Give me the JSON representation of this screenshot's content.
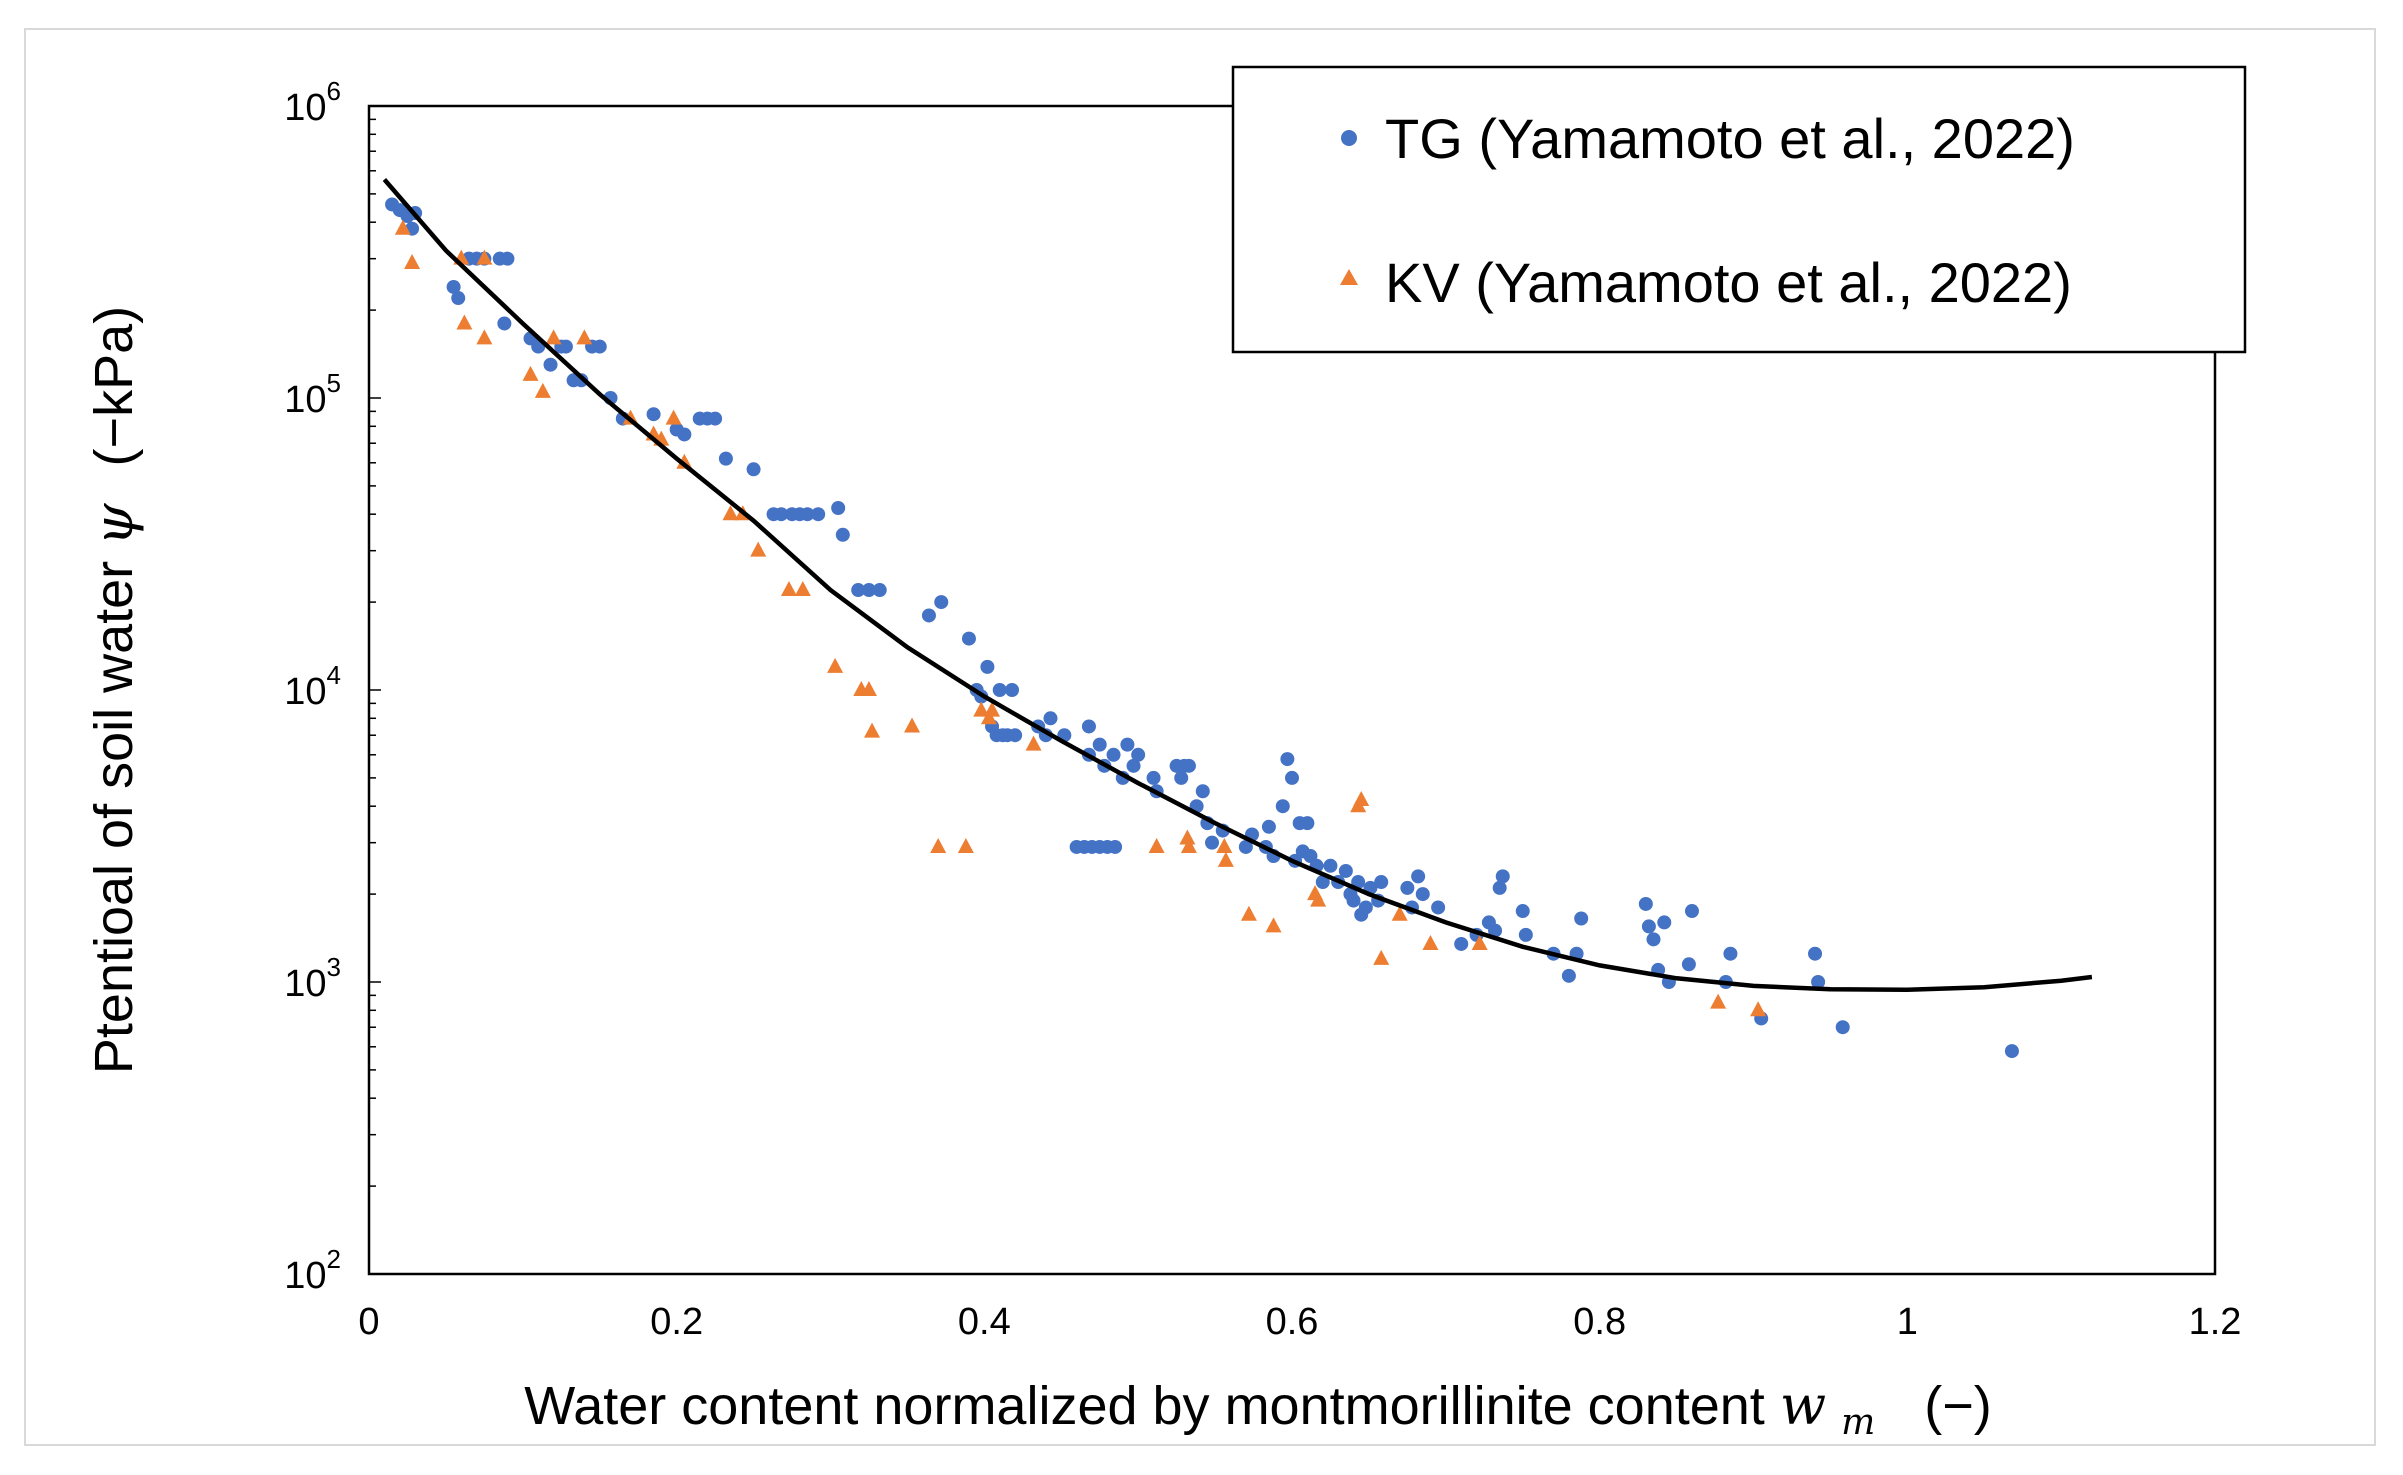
{
  "chart_data": {
    "type": "scatter",
    "xlabel": "Water content normalized by montmorillinite content",
    "xlabel_symbol": "w",
    "xlabel_subscript": "m",
    "xlabel_unit": "(−)",
    "ylabel": "Ptentioal of soil water",
    "ylabel_symbol": "ψ",
    "ylabel_unit": "(−kPa)",
    "xlim": [
      0,
      1.2
    ],
    "ylim": [
      100,
      1000000
    ],
    "yscale": "log",
    "xticks": [
      "0",
      "0.2",
      "0.4",
      "0.6",
      "0.8",
      "1",
      "1.2"
    ],
    "yticks": [
      {
        "base": "10",
        "exp": "2",
        "value": 100
      },
      {
        "base": "10",
        "exp": "3",
        "value": 1000
      },
      {
        "base": "10",
        "exp": "4",
        "value": 10000
      },
      {
        "base": "10",
        "exp": "5",
        "value": 100000
      },
      {
        "base": "10",
        "exp": "6",
        "value": 1000000
      }
    ],
    "grid": false,
    "legend_position": "top-right",
    "series": [
      {
        "name": "TG (Yamamoto et al., 2022)",
        "marker": "circle",
        "color": "#4472C4",
        "points": [
          [
            0.015,
            460000
          ],
          [
            0.02,
            440000
          ],
          [
            0.025,
            420000
          ],
          [
            0.028,
            380000
          ],
          [
            0.03,
            430000
          ],
          [
            0.055,
            240000
          ],
          [
            0.058,
            220000
          ],
          [
            0.065,
            300000
          ],
          [
            0.07,
            300000
          ],
          [
            0.075,
            300000
          ],
          [
            0.085,
            300000
          ],
          [
            0.09,
            300000
          ],
          [
            0.088,
            180000
          ],
          [
            0.105,
            160000
          ],
          [
            0.11,
            150000
          ],
          [
            0.118,
            130000
          ],
          [
            0.125,
            150000
          ],
          [
            0.128,
            150000
          ],
          [
            0.133,
            115000
          ],
          [
            0.138,
            115000
          ],
          [
            0.145,
            150000
          ],
          [
            0.15,
            150000
          ],
          [
            0.157,
            100000
          ],
          [
            0.165,
            85000
          ],
          [
            0.185,
            88000
          ],
          [
            0.2,
            78000
          ],
          [
            0.205,
            75000
          ],
          [
            0.215,
            85000
          ],
          [
            0.22,
            85000
          ],
          [
            0.225,
            85000
          ],
          [
            0.232,
            62000
          ],
          [
            0.25,
            57000
          ],
          [
            0.263,
            40000
          ],
          [
            0.268,
            40000
          ],
          [
            0.275,
            40000
          ],
          [
            0.28,
            40000
          ],
          [
            0.285,
            40000
          ],
          [
            0.292,
            40000
          ],
          [
            0.305,
            42000
          ],
          [
            0.308,
            34000
          ],
          [
            0.318,
            22000
          ],
          [
            0.325,
            22000
          ],
          [
            0.332,
            22000
          ],
          [
            0.364,
            18000
          ],
          [
            0.372,
            20000
          ],
          [
            0.39,
            15000
          ],
          [
            0.395,
            10000
          ],
          [
            0.398,
            9500
          ],
          [
            0.402,
            12000
          ],
          [
            0.405,
            7500
          ],
          [
            0.408,
            7000
          ],
          [
            0.41,
            10000
          ],
          [
            0.412,
            7000
          ],
          [
            0.415,
            7000
          ],
          [
            0.418,
            10000
          ],
          [
            0.42,
            7000
          ],
          [
            0.435,
            7500
          ],
          [
            0.44,
            7000
          ],
          [
            0.443,
            8000
          ],
          [
            0.452,
            7000
          ],
          [
            0.46,
            2900
          ],
          [
            0.465,
            2900
          ],
          [
            0.47,
            2900
          ],
          [
            0.475,
            2900
          ],
          [
            0.48,
            2900
          ],
          [
            0.485,
            2900
          ],
          [
            0.468,
            7500
          ],
          [
            0.468,
            6000
          ],
          [
            0.475,
            6500
          ],
          [
            0.478,
            5500
          ],
          [
            0.484,
            6000
          ],
          [
            0.49,
            5000
          ],
          [
            0.493,
            6500
          ],
          [
            0.497,
            5500
          ],
          [
            0.5,
            6000
          ],
          [
            0.51,
            5000
          ],
          [
            0.512,
            4500
          ],
          [
            0.525,
            5500
          ],
          [
            0.528,
            5000
          ],
          [
            0.53,
            5500
          ],
          [
            0.533,
            5500
          ],
          [
            0.538,
            4000
          ],
          [
            0.542,
            4500
          ],
          [
            0.545,
            3500
          ],
          [
            0.548,
            3000
          ],
          [
            0.555,
            3300
          ],
          [
            0.57,
            2900
          ],
          [
            0.574,
            3200
          ],
          [
            0.583,
            2900
          ],
          [
            0.585,
            3400
          ],
          [
            0.588,
            2700
          ],
          [
            0.594,
            4000
          ],
          [
            0.597,
            5800
          ],
          [
            0.6,
            5000
          ],
          [
            0.602,
            2600
          ],
          [
            0.605,
            3500
          ],
          [
            0.607,
            2800
          ],
          [
            0.61,
            3500
          ],
          [
            0.612,
            2700
          ],
          [
            0.616,
            2500
          ],
          [
            0.62,
            2200
          ],
          [
            0.625,
            2500
          ],
          [
            0.63,
            2200
          ],
          [
            0.635,
            2400
          ],
          [
            0.638,
            2000
          ],
          [
            0.64,
            1900
          ],
          [
            0.643,
            2200
          ],
          [
            0.645,
            1700
          ],
          [
            0.648,
            1800
          ],
          [
            0.651,
            2100
          ],
          [
            0.656,
            1900
          ],
          [
            0.658,
            2200
          ],
          [
            0.675,
            2100
          ],
          [
            0.678,
            1800
          ],
          [
            0.682,
            2300
          ],
          [
            0.685,
            2000
          ],
          [
            0.695,
            1800
          ],
          [
            0.71,
            1350
          ],
          [
            0.72,
            1450
          ],
          [
            0.728,
            1600
          ],
          [
            0.732,
            1500
          ],
          [
            0.735,
            2100
          ],
          [
            0.737,
            2300
          ],
          [
            0.75,
            1750
          ],
          [
            0.752,
            1450
          ],
          [
            0.77,
            1250
          ],
          [
            0.78,
            1050
          ],
          [
            0.785,
            1250
          ],
          [
            0.788,
            1650
          ],
          [
            0.83,
            1850
          ],
          [
            0.832,
            1550
          ],
          [
            0.835,
            1400
          ],
          [
            0.838,
            1100
          ],
          [
            0.842,
            1600
          ],
          [
            0.845,
            1000
          ],
          [
            0.858,
            1150
          ],
          [
            0.86,
            1750
          ],
          [
            0.882,
            1000
          ],
          [
            0.885,
            1250
          ],
          [
            0.905,
            750
          ],
          [
            0.94,
            1250
          ],
          [
            0.942,
            1000
          ],
          [
            0.958,
            700
          ],
          [
            1.068,
            580
          ]
        ]
      },
      {
        "name": "KV (Yamamoto et al., 2022)",
        "marker": "triangle",
        "color": "#ED7D31",
        "points": [
          [
            0.022,
            380000
          ],
          [
            0.028,
            290000
          ],
          [
            0.06,
            300000
          ],
          [
            0.062,
            180000
          ],
          [
            0.075,
            160000
          ],
          [
            0.075,
            300000
          ],
          [
            0.105,
            120000
          ],
          [
            0.113,
            105000
          ],
          [
            0.12,
            160000
          ],
          [
            0.14,
            160000
          ],
          [
            0.17,
            85000
          ],
          [
            0.185,
            75000
          ],
          [
            0.19,
            72000
          ],
          [
            0.198,
            85000
          ],
          [
            0.205,
            60000
          ],
          [
            0.235,
            40000
          ],
          [
            0.243,
            40000
          ],
          [
            0.253,
            30000
          ],
          [
            0.273,
            22000
          ],
          [
            0.282,
            22000
          ],
          [
            0.303,
            12000
          ],
          [
            0.32,
            10000
          ],
          [
            0.325,
            10000
          ],
          [
            0.327,
            7200
          ],
          [
            0.353,
            7500
          ],
          [
            0.37,
            2900
          ],
          [
            0.388,
            2900
          ],
          [
            0.398,
            8500
          ],
          [
            0.403,
            8000
          ],
          [
            0.405,
            8500
          ],
          [
            0.432,
            6500
          ],
          [
            0.512,
            2900
          ],
          [
            0.532,
            3100
          ],
          [
            0.533,
            2900
          ],
          [
            0.556,
            2900
          ],
          [
            0.557,
            2600
          ],
          [
            0.572,
            1700
          ],
          [
            0.588,
            1550
          ],
          [
            0.615,
            2000
          ],
          [
            0.617,
            1900
          ],
          [
            0.643,
            4000
          ],
          [
            0.645,
            4200
          ],
          [
            0.658,
            1200
          ],
          [
            0.67,
            1700
          ],
          [
            0.69,
            1350
          ],
          [
            0.722,
            1350
          ],
          [
            0.877,
            850
          ],
          [
            0.903,
            800
          ]
        ]
      },
      {
        "name": "",
        "type": "line",
        "color": "#000000",
        "points": [
          [
            0.01,
            560000
          ],
          [
            0.05,
            320000
          ],
          [
            0.1,
            180000
          ],
          [
            0.15,
            103000
          ],
          [
            0.2,
            62000
          ],
          [
            0.25,
            38000
          ],
          [
            0.3,
            22000
          ],
          [
            0.35,
            14000
          ],
          [
            0.4,
            9500
          ],
          [
            0.45,
            6700
          ],
          [
            0.5,
            4800
          ],
          [
            0.55,
            3500
          ],
          [
            0.6,
            2600
          ],
          [
            0.65,
            2000
          ],
          [
            0.7,
            1600
          ],
          [
            0.75,
            1320
          ],
          [
            0.8,
            1140
          ],
          [
            0.85,
            1030
          ],
          [
            0.9,
            970
          ],
          [
            0.95,
            945
          ],
          [
            1.0,
            940
          ],
          [
            1.05,
            960
          ],
          [
            1.1,
            1010
          ],
          [
            1.12,
            1040
          ]
        ]
      }
    ]
  }
}
